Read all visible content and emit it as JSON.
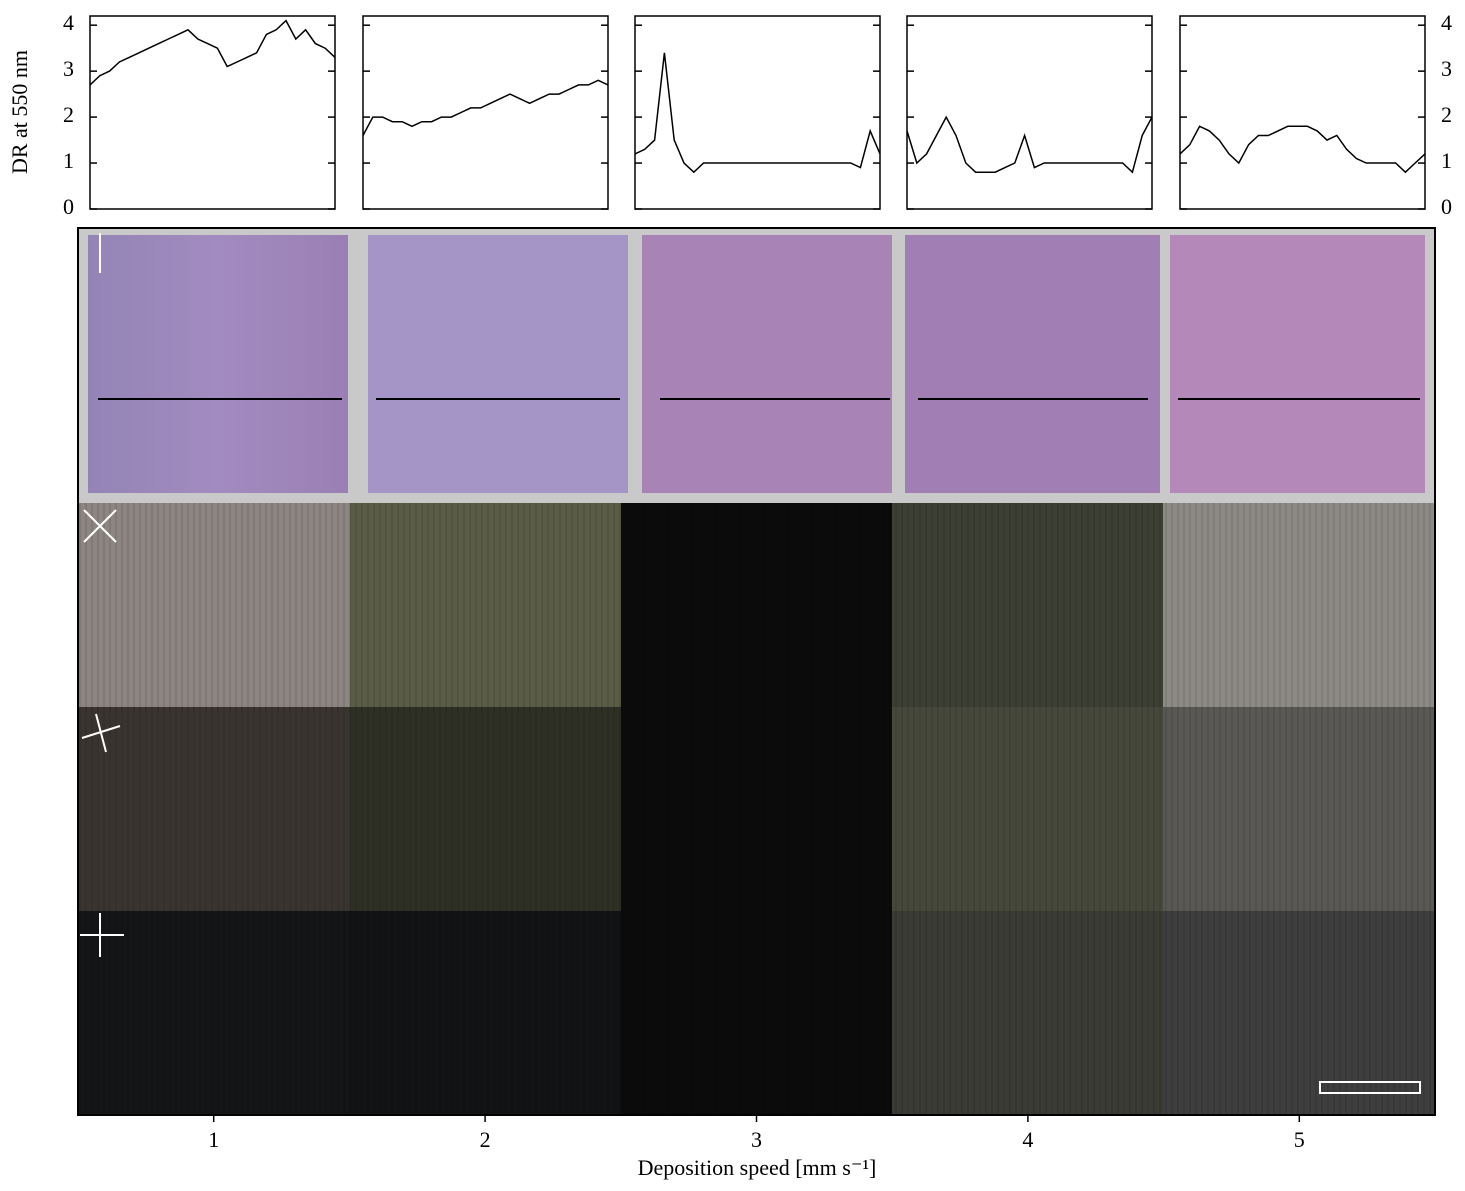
{
  "chart_data": [
    {
      "type": "line",
      "y_label": "DR at 550 nm",
      "ylim": [
        0,
        4.2
      ],
      "yticks": [
        0,
        1,
        2,
        3,
        4
      ],
      "values": [
        2.7,
        2.9,
        3.0,
        3.2,
        3.3,
        3.4,
        3.5,
        3.6,
        3.7,
        3.8,
        3.9,
        3.7,
        3.6,
        3.5,
        3.1,
        3.2,
        3.3,
        3.4,
        3.8,
        3.9,
        4.1,
        3.7,
        3.9,
        3.6,
        3.5,
        3.3
      ]
    },
    {
      "type": "line",
      "ylim": [
        0,
        4.2
      ],
      "yticks": [
        0,
        1,
        2,
        3,
        4
      ],
      "values": [
        1.6,
        2.0,
        2.0,
        1.9,
        1.9,
        1.8,
        1.9,
        1.9,
        2.0,
        2.0,
        2.1,
        2.2,
        2.2,
        2.3,
        2.4,
        2.5,
        2.4,
        2.3,
        2.4,
        2.5,
        2.5,
        2.6,
        2.7,
        2.7,
        2.8,
        2.7
      ]
    },
    {
      "type": "line",
      "ylim": [
        0,
        4.2
      ],
      "yticks": [
        0,
        1,
        2,
        3,
        4
      ],
      "values": [
        1.2,
        1.3,
        1.5,
        3.4,
        1.5,
        1.0,
        0.8,
        1.0,
        1.0,
        1.0,
        1.0,
        1.0,
        1.0,
        1.0,
        1.0,
        1.0,
        1.0,
        1.0,
        1.0,
        1.0,
        1.0,
        1.0,
        1.0,
        0.9,
        1.7,
        1.2
      ]
    },
    {
      "type": "line",
      "ylim": [
        0,
        4.2
      ],
      "yticks": [
        0,
        1,
        2,
        3,
        4
      ],
      "values": [
        1.7,
        1.0,
        1.2,
        1.6,
        2.0,
        1.6,
        1.0,
        0.8,
        0.8,
        0.8,
        0.9,
        1.0,
        1.6,
        0.9,
        1.0,
        1.0,
        1.0,
        1.0,
        1.0,
        1.0,
        1.0,
        1.0,
        1.0,
        0.8,
        1.6,
        2.0
      ]
    },
    {
      "type": "line",
      "ylim": [
        0,
        4.2
      ],
      "yticks": [
        0,
        1,
        2,
        3,
        4
      ],
      "values": [
        1.2,
        1.4,
        1.8,
        1.7,
        1.5,
        1.2,
        1.0,
        1.4,
        1.6,
        1.6,
        1.7,
        1.8,
        1.8,
        1.8,
        1.7,
        1.5,
        1.6,
        1.3,
        1.1,
        1.0,
        1.0,
        1.0,
        1.0,
        0.8,
        1.0,
        1.2
      ]
    }
  ],
  "speed_axis": {
    "x_label": "Deposition speed [mm s⁻¹]",
    "xlim": [
      0.5,
      5.5
    ],
    "xticks": [
      1,
      2,
      3,
      4,
      5
    ]
  }
}
